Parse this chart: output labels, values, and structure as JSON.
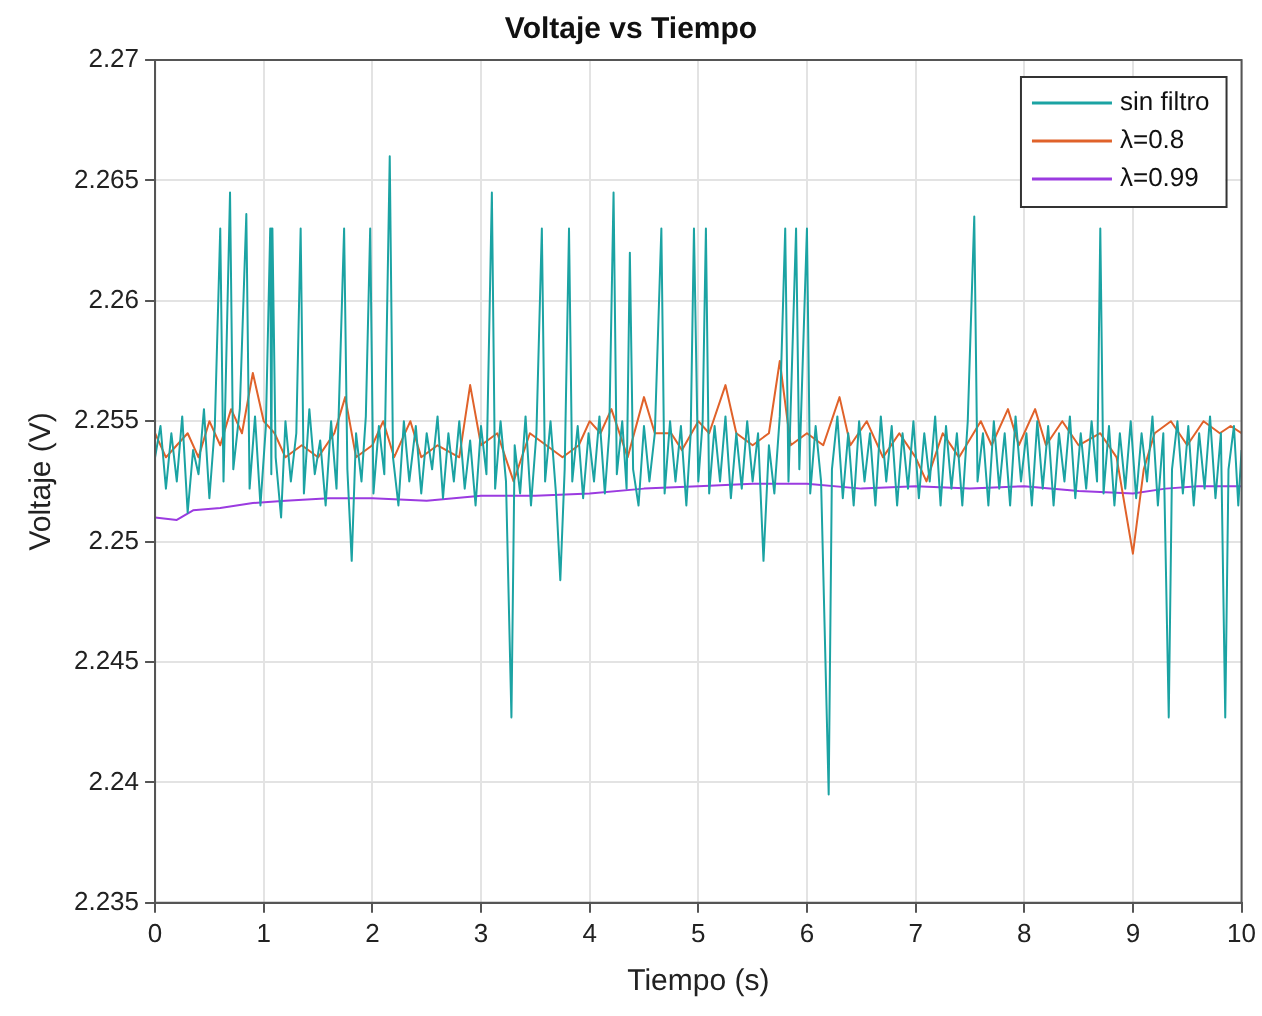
{
  "chart_data": {
    "type": "line",
    "title": "Voltaje vs Tiempo",
    "xlabel": "Tiempo (s)",
    "ylabel": "Voltaje (V)",
    "xlim": [
      0,
      10
    ],
    "xticks": [
      0,
      1,
      2,
      3,
      4,
      5,
      6,
      7,
      8,
      9,
      10
    ],
    "ylim": [
      2.235,
      2.27
    ],
    "yticks": [
      2.235,
      2.24,
      2.245,
      2.25,
      2.255,
      2.26,
      2.265,
      2.27
    ],
    "grid": true,
    "legend": "top right",
    "marker": "none",
    "line_style": "solid",
    "series": [
      {
        "name": "sin filtro",
        "color": "#1ba3a3",
        "x": [
          0,
          0.05,
          0.1,
          0.15,
          0.2,
          0.25,
          0.3,
          0.35,
          0.4,
          0.45,
          0.5,
          0.55,
          0.6,
          0.63,
          0.69,
          0.72,
          0.78,
          0.84,
          0.87,
          0.92,
          0.97,
          1.02,
          1.06,
          1.07,
          1.08,
          1.11,
          1.16,
          1.2,
          1.25,
          1.3,
          1.34,
          1.37,
          1.42,
          1.47,
          1.52,
          1.57,
          1.62,
          1.67,
          1.74,
          1.77,
          1.81,
          1.85,
          1.9,
          1.94,
          1.98,
          2.01,
          2.06,
          2.11,
          2.16,
          2.19,
          2.24,
          2.29,
          2.34,
          2.4,
          2.45,
          2.5,
          2.55,
          2.6,
          2.65,
          2.7,
          2.75,
          2.8,
          2.85,
          2.9,
          2.95,
          3.0,
          3.05,
          3.1,
          3.13,
          3.18,
          3.23,
          3.28,
          3.31,
          3.36,
          3.41,
          3.46,
          3.51,
          3.56,
          3.59,
          3.64,
          3.69,
          3.73,
          3.77,
          3.81,
          3.84,
          3.89,
          3.94,
          3.99,
          4.04,
          4.09,
          4.14,
          4.18,
          4.22,
          4.25,
          4.3,
          4.34,
          4.37,
          4.4,
          4.45,
          4.5,
          4.55,
          4.6,
          4.66,
          4.69,
          4.74,
          4.79,
          4.84,
          4.89,
          4.93,
          4.96,
          5.0,
          5.04,
          5.07,
          5.1,
          5.15,
          5.2,
          5.25,
          5.3,
          5.35,
          5.4,
          5.45,
          5.5,
          5.55,
          5.6,
          5.65,
          5.7,
          5.75,
          5.8,
          5.83,
          5.9,
          5.93,
          6.0,
          6.03,
          6.08,
          6.13,
          6.2,
          6.23,
          6.28,
          6.33,
          6.38,
          6.43,
          6.48,
          6.53,
          6.58,
          6.63,
          6.68,
          6.73,
          6.78,
          6.83,
          6.88,
          6.93,
          6.98,
          7.03,
          7.08,
          7.13,
          7.18,
          7.23,
          7.28,
          7.33,
          7.38,
          7.43,
          7.48,
          7.54,
          7.57,
          7.62,
          7.67,
          7.72,
          7.77,
          7.82,
          7.87,
          7.92,
          7.97,
          8.02,
          8.07,
          8.12,
          8.17,
          8.22,
          8.27,
          8.32,
          8.37,
          8.42,
          8.47,
          8.52,
          8.57,
          8.62,
          8.67,
          8.7,
          8.73,
          8.78,
          8.83,
          8.88,
          8.93,
          8.98,
          9.03,
          9.08,
          9.13,
          9.18,
          9.23,
          9.28,
          9.33,
          9.36,
          9.41,
          9.46,
          9.51,
          9.56,
          9.61,
          9.66,
          9.71,
          9.76,
          9.81,
          9.85,
          9.88,
          9.93,
          9.97,
          10
        ],
        "values": [
          2.2535,
          2.2548,
          2.2522,
          2.2545,
          2.2525,
          2.2552,
          2.2512,
          2.2538,
          2.2528,
          2.2555,
          2.2518,
          2.2548,
          2.263,
          2.2525,
          2.2645,
          2.253,
          2.2555,
          2.2636,
          2.2522,
          2.2552,
          2.2515,
          2.2548,
          2.263,
          2.2528,
          2.263,
          2.2535,
          2.251,
          2.255,
          2.2525,
          2.2545,
          2.263,
          2.252,
          2.2555,
          2.2528,
          2.2542,
          2.2515,
          2.255,
          2.2522,
          2.263,
          2.253,
          2.2492,
          2.2545,
          2.2525,
          2.2552,
          2.263,
          2.252,
          2.2548,
          2.2528,
          2.266,
          2.2535,
          2.2515,
          2.255,
          2.2525,
          2.2548,
          2.252,
          2.2545,
          2.253,
          2.2552,
          2.2518,
          2.2545,
          2.2525,
          2.255,
          2.2522,
          2.2542,
          2.2515,
          2.2548,
          2.2528,
          2.2645,
          2.2522,
          2.255,
          2.2525,
          2.2427,
          2.254,
          2.252,
          2.2552,
          2.2515,
          2.2545,
          2.263,
          2.2525,
          2.255,
          2.252,
          2.2484,
          2.253,
          2.263,
          2.2525,
          2.2548,
          2.2518,
          2.2545,
          2.2525,
          2.2552,
          2.252,
          2.2545,
          2.2645,
          2.2528,
          2.255,
          2.2522,
          2.262,
          2.253,
          2.2515,
          2.2548,
          2.2525,
          2.2545,
          2.263,
          2.252,
          2.255,
          2.2525,
          2.2548,
          2.2515,
          2.2545,
          2.263,
          2.2525,
          2.255,
          2.263,
          2.252,
          2.2548,
          2.2525,
          2.2552,
          2.2518,
          2.2545,
          2.2522,
          2.255,
          2.2525,
          2.2545,
          2.2492,
          2.254,
          2.252,
          2.2552,
          2.263,
          2.2525,
          2.263,
          2.253,
          2.263,
          2.252,
          2.2548,
          2.2525,
          2.2395,
          2.253,
          2.2552,
          2.2518,
          2.2545,
          2.2515,
          2.255,
          2.2525,
          2.2545,
          2.2515,
          2.2552,
          2.2525,
          2.2548,
          2.2515,
          2.2545,
          2.2522,
          2.255,
          2.2518,
          2.2545,
          2.2525,
          2.2552,
          2.2515,
          2.2548,
          2.2522,
          2.2545,
          2.2515,
          2.255,
          2.2635,
          2.2525,
          2.2545,
          2.2515,
          2.255,
          2.2522,
          2.2545,
          2.2515,
          2.2552,
          2.2525,
          2.2545,
          2.2515,
          2.255,
          2.2522,
          2.2548,
          2.2515,
          2.2545,
          2.2525,
          2.2552,
          2.2518,
          2.2545,
          2.2522,
          2.255,
          2.2525,
          2.263,
          2.252,
          2.2548,
          2.2515,
          2.2545,
          2.2522,
          2.255,
          2.2518,
          2.2545,
          2.2525,
          2.2552,
          2.2515,
          2.2545,
          2.2427,
          2.253,
          2.255,
          2.252,
          2.2548,
          2.2515,
          2.2545,
          2.2522,
          2.2552,
          2.2518,
          2.2545,
          2.2427,
          2.253,
          2.2548,
          2.2515,
          2.2538
        ]
      },
      {
        "name": "λ=0.8",
        "color": "#e0622a",
        "x": [
          0,
          0.1,
          0.2,
          0.3,
          0.4,
          0.5,
          0.6,
          0.7,
          0.8,
          0.9,
          1.0,
          1.1,
          1.2,
          1.35,
          1.5,
          1.65,
          1.75,
          1.85,
          2.0,
          2.1,
          2.2,
          2.35,
          2.45,
          2.6,
          2.8,
          2.9,
          3.0,
          3.15,
          3.3,
          3.45,
          3.6,
          3.75,
          3.9,
          4.0,
          4.1,
          4.2,
          4.35,
          4.5,
          4.6,
          4.75,
          4.85,
          5.0,
          5.1,
          5.25,
          5.35,
          5.5,
          5.65,
          5.75,
          5.85,
          6.0,
          6.15,
          6.3,
          6.4,
          6.55,
          6.7,
          6.85,
          7.0,
          7.1,
          7.25,
          7.4,
          7.6,
          7.7,
          7.85,
          7.95,
          8.1,
          8.2,
          8.35,
          8.5,
          8.7,
          8.85,
          9.0,
          9.1,
          9.2,
          9.35,
          9.5,
          9.65,
          9.8,
          9.9,
          10
        ],
        "values": [
          2.2545,
          2.2535,
          2.254,
          2.2545,
          2.2535,
          2.255,
          2.254,
          2.2555,
          2.2545,
          2.257,
          2.255,
          2.2545,
          2.2535,
          2.254,
          2.2535,
          2.2545,
          2.256,
          2.2535,
          2.254,
          2.255,
          2.2535,
          2.255,
          2.2535,
          2.254,
          2.2535,
          2.2565,
          2.254,
          2.2545,
          2.2525,
          2.2545,
          2.254,
          2.2535,
          2.254,
          2.255,
          2.2545,
          2.2555,
          2.2535,
          2.256,
          2.2545,
          2.2545,
          2.2538,
          2.255,
          2.2545,
          2.2565,
          2.2545,
          2.254,
          2.2545,
          2.2575,
          2.254,
          2.2545,
          2.254,
          2.256,
          2.254,
          2.255,
          2.2535,
          2.2545,
          2.2535,
          2.2525,
          2.2545,
          2.2535,
          2.255,
          2.254,
          2.2555,
          2.254,
          2.2555,
          2.254,
          2.255,
          2.254,
          2.2545,
          2.2535,
          2.2495,
          2.253,
          2.2545,
          2.255,
          2.254,
          2.255,
          2.2545,
          2.2548,
          2.2545
        ]
      },
      {
        "name": "λ=0.99",
        "color": "#9b3be0",
        "x": [
          0,
          0.2,
          0.35,
          0.6,
          0.9,
          1.2,
          1.6,
          2.0,
          2.5,
          3.0,
          3.5,
          4.0,
          4.5,
          5.0,
          5.5,
          6.0,
          6.5,
          7.0,
          7.5,
          8.0,
          8.5,
          9.0,
          9.3,
          9.6,
          10
        ],
        "values": [
          2.251,
          2.2509,
          2.2513,
          2.2514,
          2.2516,
          2.2517,
          2.2518,
          2.2518,
          2.2517,
          2.2519,
          2.2519,
          2.252,
          2.2522,
          2.2523,
          2.2524,
          2.2524,
          2.2522,
          2.2523,
          2.2522,
          2.2523,
          2.2521,
          2.252,
          2.2522,
          2.2523,
          2.2523
        ]
      }
    ]
  }
}
